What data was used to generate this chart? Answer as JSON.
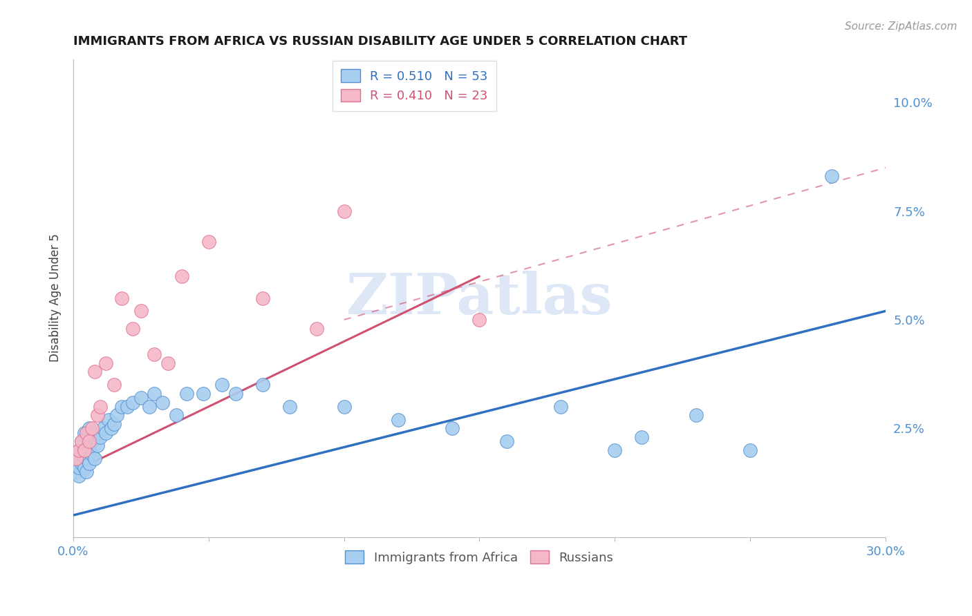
{
  "title": "IMMIGRANTS FROM AFRICA VS RUSSIAN DISABILITY AGE UNDER 5 CORRELATION CHART",
  "source": "Source: ZipAtlas.com",
  "ylabel": "Disability Age Under 5",
  "xlim": [
    0.0,
    0.3
  ],
  "ylim": [
    0.0,
    0.11
  ],
  "xticks": [
    0.0,
    0.05,
    0.1,
    0.15,
    0.2,
    0.25,
    0.3
  ],
  "xticklabels": [
    "0.0%",
    "",
    "",
    "",
    "",
    "",
    "30.0%"
  ],
  "yticks": [
    0.025,
    0.05,
    0.075,
    0.1
  ],
  "yticklabels": [
    "2.5%",
    "5.0%",
    "7.5%",
    "10.0%"
  ],
  "blue_R": "0.510",
  "blue_N": "53",
  "pink_R": "0.410",
  "pink_N": "23",
  "blue_color": "#a8cef0",
  "pink_color": "#f5b8c8",
  "blue_edge_color": "#5090d0",
  "pink_edge_color": "#e07090",
  "blue_line_color": "#3070c0",
  "pink_line_color": "#d05070",
  "tick_label_color": "#5090d0",
  "watermark_color": "#c8d8f0",
  "legend_label_blue": "Immigrants from Africa",
  "legend_label_pink": "Russians",
  "blue_scatter_x": [
    0.001,
    0.001,
    0.002,
    0.002,
    0.002,
    0.003,
    0.003,
    0.003,
    0.004,
    0.004,
    0.004,
    0.005,
    0.005,
    0.005,
    0.006,
    0.006,
    0.006,
    0.007,
    0.007,
    0.008,
    0.008,
    0.009,
    0.01,
    0.011,
    0.012,
    0.013,
    0.014,
    0.015,
    0.016,
    0.018,
    0.02,
    0.022,
    0.025,
    0.028,
    0.03,
    0.033,
    0.038,
    0.042,
    0.048,
    0.055,
    0.06,
    0.07,
    0.08,
    0.1,
    0.12,
    0.14,
    0.16,
    0.18,
    0.2,
    0.21,
    0.23,
    0.25,
    0.28
  ],
  "blue_scatter_y": [
    0.015,
    0.018,
    0.014,
    0.02,
    0.016,
    0.017,
    0.019,
    0.022,
    0.016,
    0.02,
    0.024,
    0.015,
    0.018,
    0.023,
    0.017,
    0.02,
    0.025,
    0.019,
    0.022,
    0.018,
    0.024,
    0.021,
    0.023,
    0.025,
    0.024,
    0.027,
    0.025,
    0.026,
    0.028,
    0.03,
    0.03,
    0.031,
    0.032,
    0.03,
    0.033,
    0.031,
    0.028,
    0.033,
    0.033,
    0.035,
    0.033,
    0.035,
    0.03,
    0.03,
    0.027,
    0.025,
    0.022,
    0.03,
    0.02,
    0.023,
    0.028,
    0.02,
    0.083
  ],
  "pink_scatter_x": [
    0.001,
    0.002,
    0.003,
    0.004,
    0.005,
    0.006,
    0.007,
    0.008,
    0.009,
    0.01,
    0.012,
    0.015,
    0.018,
    0.022,
    0.025,
    0.03,
    0.035,
    0.04,
    0.05,
    0.07,
    0.09,
    0.1,
    0.15
  ],
  "pink_scatter_y": [
    0.018,
    0.02,
    0.022,
    0.02,
    0.024,
    0.022,
    0.025,
    0.038,
    0.028,
    0.03,
    0.04,
    0.035,
    0.055,
    0.048,
    0.052,
    0.042,
    0.04,
    0.06,
    0.068,
    0.055,
    0.048,
    0.075,
    0.05
  ],
  "blue_trend": [
    0.0,
    0.3,
    0.005,
    0.052
  ],
  "pink_trend_solid": [
    0.0,
    0.15,
    0.015,
    0.06
  ],
  "pink_trend_dashed": [
    0.1,
    0.3,
    0.05,
    0.085
  ]
}
